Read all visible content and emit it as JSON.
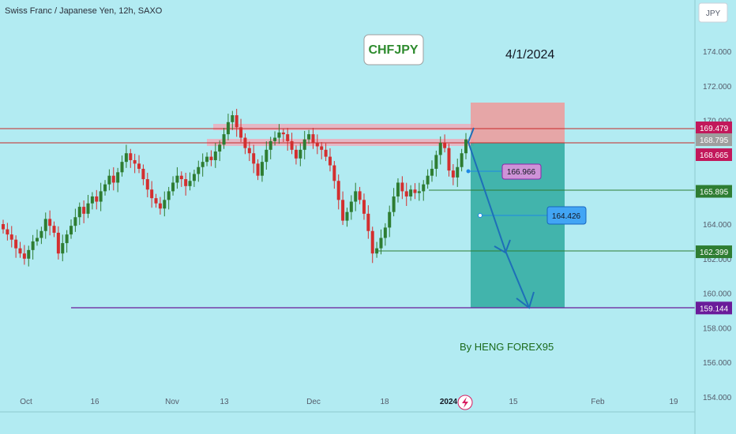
{
  "chart_data": {
    "type": "candlestick",
    "title": "Swiss Franc / Japanese Yen, 12h, SAXO",
    "currency_button": "JPY",
    "y_ticks": [
      "174.000",
      "172.000",
      "170.000",
      "168.000",
      "166.000",
      "164.000",
      "162.000",
      "160.000",
      "158.000",
      "156.000",
      "154.000"
    ],
    "x_ticks": [
      {
        "label": "Oct",
        "bold": false
      },
      {
        "label": "16",
        "bold": false
      },
      {
        "label": "Nov",
        "bold": false
      },
      {
        "label": "13",
        "bold": false
      },
      {
        "label": "Dec",
        "bold": false
      },
      {
        "label": "18",
        "bold": false
      },
      {
        "label": "2024",
        "bold": true
      },
      {
        "label": "15",
        "bold": false
      },
      {
        "label": "Feb",
        "bold": false
      },
      {
        "label": "19",
        "bold": false
      }
    ],
    "price_tags": [
      {
        "label": "169.479",
        "value": 169.479,
        "color": "#c2185b"
      },
      {
        "label": "168.795",
        "value": 168.795,
        "color": "#9e9e9e"
      },
      {
        "label": "168.665",
        "value": 168.665,
        "color": "#c2185b"
      },
      {
        "label": "165.895",
        "value": 165.895,
        "color": "#2e7d32"
      },
      {
        "label": "162.399",
        "value": 162.399,
        "color": "#2e7d32"
      },
      {
        "label": "159.144",
        "value": 159.144,
        "color": "#6a1b9a"
      }
    ],
    "targets": [
      {
        "label": "166.966",
        "value": 166.966,
        "fill": "#ce93d8"
      },
      {
        "label": "164.426",
        "value": 164.426,
        "fill": "#42a5f5"
      }
    ],
    "position": {
      "entry": 169.479,
      "stop": 171.0,
      "target": 159.144
    },
    "annotations": {
      "pair": "CHFJPY",
      "date": "4/1/2024",
      "author": "By HENG FOREX95"
    },
    "colors": {
      "up": "#2e7d32",
      "down": "#d32f2f",
      "background": "#b2ebf2"
    }
  }
}
